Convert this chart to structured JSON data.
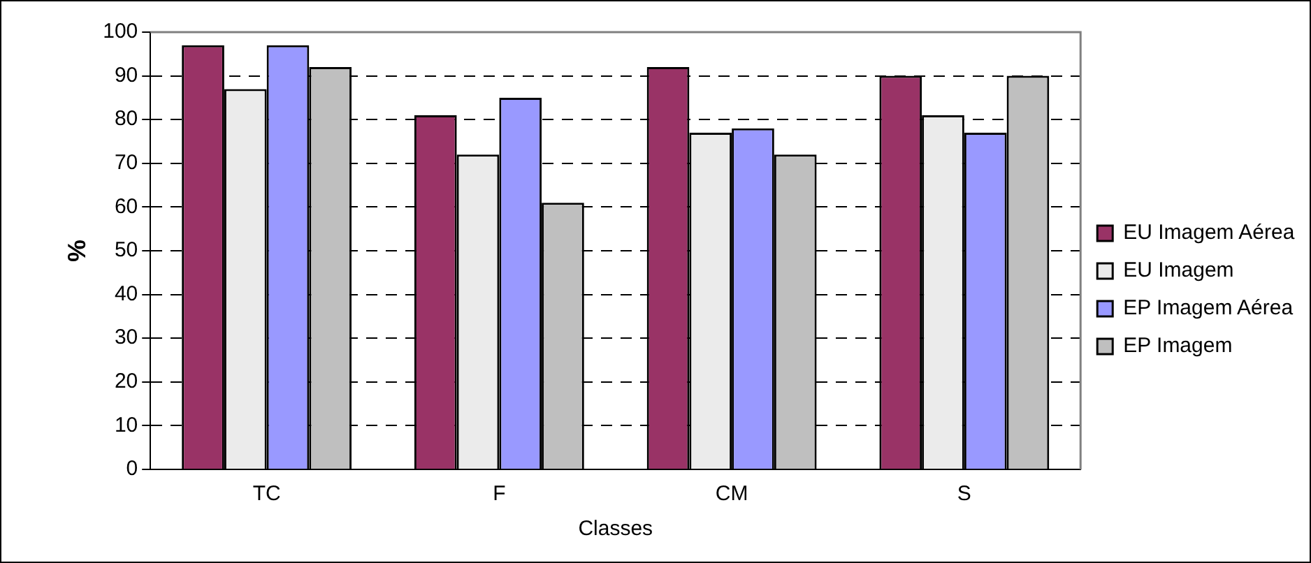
{
  "chart_data": {
    "type": "bar",
    "xlabel": "Classes",
    "ylabel": "%",
    "categories": [
      "TC",
      "F",
      "CM",
      "S"
    ],
    "series": [
      {
        "name": "EU Imagem Aérea",
        "color": "#993366",
        "values": [
          97,
          81,
          92,
          90
        ]
      },
      {
        "name": "EU Imagem",
        "color": "#ebebeb",
        "values": [
          87,
          72,
          77,
          81
        ]
      },
      {
        "name": "EP Imagem Aérea",
        "color": "#9999ff",
        "values": [
          97,
          85,
          78,
          77
        ]
      },
      {
        "name": "EP Imagem",
        "color": "#bfbfbf",
        "values": [
          92,
          61,
          72,
          90
        ]
      }
    ],
    "ylim": [
      0,
      100
    ],
    "yticks": [
      0,
      10,
      20,
      30,
      40,
      50,
      60,
      70,
      80,
      90,
      100
    ],
    "grid": "y",
    "legend": "right"
  }
}
